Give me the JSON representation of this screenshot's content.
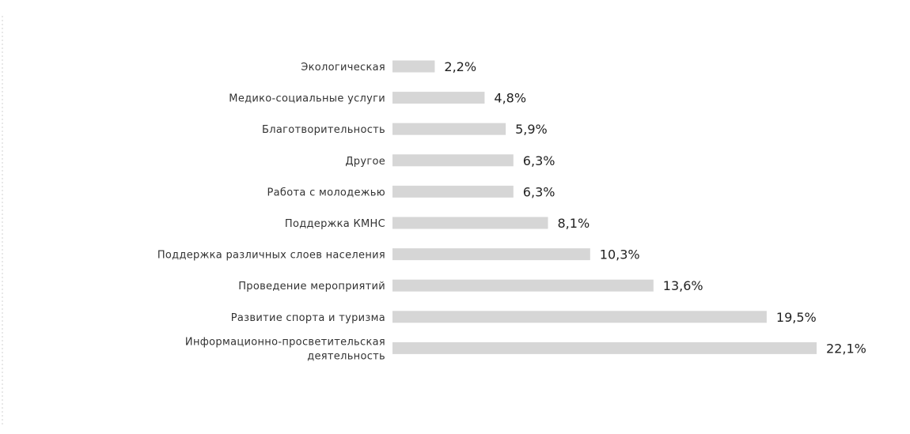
{
  "chart_data": {
    "type": "bar",
    "orientation": "horizontal",
    "categories": [
      [
        "Экологическая"
      ],
      [
        "Медико-социальные услуги"
      ],
      [
        "Благотворительность"
      ],
      [
        "Другое"
      ],
      [
        "Работа с молодежью"
      ],
      [
        "Поддержка КМНС"
      ],
      [
        "Поддержка различных слоев населения"
      ],
      [
        "Проведение мероприятий"
      ],
      [
        "Развитие спорта и туризма"
      ],
      [
        "Информационно-просветительская",
        "деятельность"
      ]
    ],
    "values": [
      2.2,
      4.8,
      5.9,
      6.3,
      6.3,
      8.1,
      10.3,
      13.6,
      19.5,
      22.1
    ],
    "value_labels": [
      "2,2%",
      "4,8%",
      "5,9%",
      "6,3%",
      "6,3%",
      "8,1%",
      "10,3%",
      "13,6%",
      "19,5%",
      "22,1%"
    ],
    "unit": "%",
    "bar_color": "#d6d6d6",
    "grid": false,
    "legend": "none",
    "xlim": [
      0,
      22.1
    ]
  }
}
